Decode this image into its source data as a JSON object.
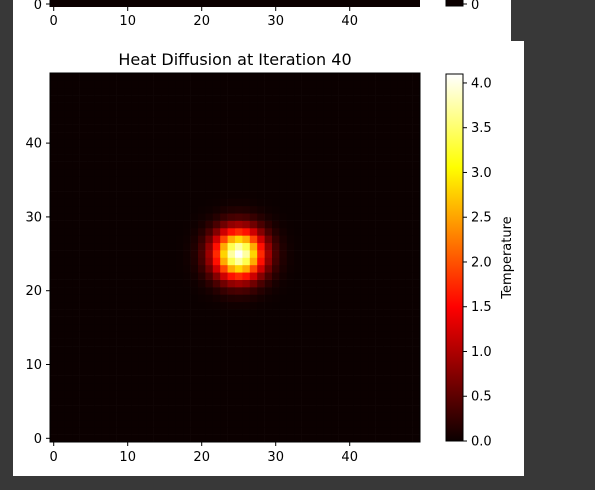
{
  "chart_data": [
    {
      "type": "heatmap",
      "title": "",
      "xlabel": "",
      "ylabel": "",
      "x_ticks": [
        "0",
        "10",
        "20",
        "30",
        "40"
      ],
      "y_ticks": [
        "0"
      ],
      "colorbar_ticks": [
        "0"
      ],
      "xlim": [
        0,
        50
      ],
      "colorscale": "hot",
      "grid": false
    },
    {
      "type": "heatmap",
      "title": "Heat Diffusion at Iteration 40",
      "xlabel": "",
      "ylabel": "",
      "grid_size": [
        50,
        50
      ],
      "xlim": [
        0,
        50
      ],
      "ylim": [
        0,
        50
      ],
      "x_ticks": [
        "0",
        "10",
        "20",
        "30",
        "40"
      ],
      "y_ticks": [
        "0",
        "10",
        "20",
        "30",
        "40"
      ],
      "colorscale": "hot",
      "colorbar": {
        "label": "Temperature",
        "min": 0.0,
        "max": 4.1,
        "ticks": [
          "0.0",
          "0.5",
          "1.0",
          "1.5",
          "2.0",
          "2.5",
          "3.0",
          "3.5",
          "4.0"
        ]
      },
      "peak": {
        "x": 25,
        "y": 25,
        "value": 4.08
      },
      "spread_sigma": 2.3,
      "background_value": 0.0,
      "grid": false
    }
  ]
}
